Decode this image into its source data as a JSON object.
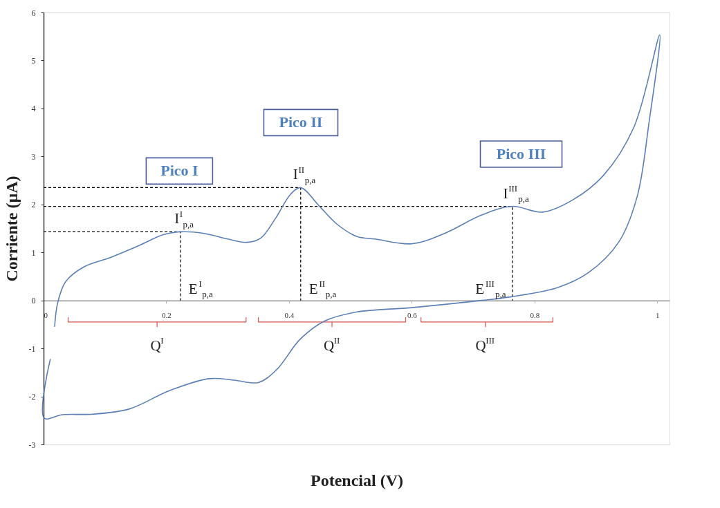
{
  "chart_data": {
    "type": "line",
    "xlabel": "Potencial (V)",
    "ylabel": "Corriente (µA)",
    "xlim": [
      0,
      1.02
    ],
    "ylim": [
      -3,
      6
    ],
    "xticks": [
      0,
      0.2,
      0.4,
      0.6,
      0.8,
      1
    ],
    "yticks": [
      -3,
      -2,
      -1,
      0,
      1,
      2,
      3,
      4,
      5,
      6
    ],
    "grid": false,
    "marker": "none",
    "series": [
      {
        "color": "#5b7fb5",
        "line_style": "solid",
        "x": [
          0.018,
          0.023,
          0.036,
          0.066,
          0.11,
          0.155,
          0.195,
          0.223,
          0.26,
          0.3,
          0.331,
          0.354,
          0.378,
          0.403,
          0.419,
          0.449,
          0.478,
          0.511,
          0.54,
          0.6,
          0.654,
          0.714,
          0.764,
          0.813,
          0.863,
          0.912,
          0.962,
          1.004,
          0.987,
          0.967,
          0.937,
          0.888,
          0.838,
          0.764,
          0.714,
          0.6,
          0.511,
          0.458,
          0.418,
          0.38,
          0.35,
          0.31,
          0.27,
          0.205,
          0.14,
          0.08,
          0.031,
          0.001,
          0.011
        ],
        "values": [
          -0.55,
          -0.05,
          0.39,
          0.7,
          0.9,
          1.14,
          1.37,
          1.43,
          1.4,
          1.28,
          1.21,
          1.3,
          1.71,
          2.22,
          2.35,
          1.97,
          1.59,
          1.33,
          1.28,
          1.18,
          1.4,
          1.78,
          1.96,
          1.84,
          2.1,
          2.6,
          3.61,
          5.53,
          3.74,
          2.15,
          1.21,
          0.58,
          0.27,
          0.08,
          0,
          -0.15,
          -0.24,
          -0.43,
          -0.81,
          -1.44,
          -1.71,
          -1.66,
          -1.63,
          -1.88,
          -2.26,
          -2.37,
          -2.38,
          -2.45,
          -1.22
        ]
      },
      {
        "color": "#000000",
        "line_style": "dashed",
        "x": [
          0,
          0.223,
          0.223
        ],
        "values": [
          1.43,
          1.43,
          0
        ]
      },
      {
        "color": "#000000",
        "line_style": "dashed",
        "x": [
          0,
          0.419,
          0.419
        ],
        "values": [
          2.35,
          2.35,
          0
        ]
      },
      {
        "color": "#000000",
        "line_style": "dashed",
        "x": [
          0,
          0.764,
          0.764
        ],
        "values": [
          1.96,
          1.96,
          0
        ]
      },
      {
        "color": "#d9534f",
        "line_style": "solid",
        "x": [
          0.04,
          0.04,
          0.185,
          0.185,
          0.185,
          0.33,
          0.33
        ],
        "values": [
          -0.35,
          -0.45,
          -0.45,
          -0.55,
          -0.45,
          -0.45,
          -0.35
        ]
      },
      {
        "color": "#d9534f",
        "line_style": "solid",
        "x": [
          0.35,
          0.35,
          0.47,
          0.47,
          0.47,
          0.59,
          0.59
        ],
        "values": [
          -0.35,
          -0.45,
          -0.45,
          -0.55,
          -0.45,
          -0.45,
          -0.35
        ]
      },
      {
        "color": "#d9534f",
        "line_style": "solid",
        "x": [
          0.615,
          0.615,
          0.72,
          0.72,
          0.72,
          0.83,
          0.83
        ],
        "values": [
          -0.35,
          -0.45,
          -0.45,
          -0.55,
          -0.45,
          -0.45,
          -0.35
        ]
      }
    ],
    "annotations": [
      "Pico I",
      "Pico II",
      "Pico III",
      {
        "text": "I$^{I}$$_{p,a}$",
        "x": 0.223,
        "y": 1.43
      },
      {
        "text": "I$^{II}$$_{p,a}$",
        "x": 0.419,
        "y": 2.35
      },
      {
        "text": "I$^{III}$$_{p,a}$",
        "x": 0.764,
        "y": 1.96
      },
      {
        "text": "E$^{I}$$_{p,a}$",
        "x": 0.223,
        "y": 0
      },
      {
        "text": "E$^{II}$$_{p,a}$",
        "x": 0.419,
        "y": 0
      },
      {
        "text": "E$^{III}$$_{p,a}$",
        "x": 0.764,
        "y": 0
      },
      {
        "text": "Q$^{I}$",
        "x": 0.185,
        "y": -0.55
      },
      {
        "text": "Q$^{II}$",
        "x": 0.47,
        "y": -0.55
      },
      {
        "text": "Q$^{III}$",
        "x": 0.72,
        "y": -0.55
      }
    ]
  }
}
